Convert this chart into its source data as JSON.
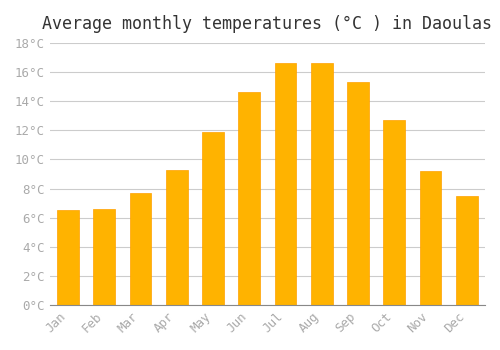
{
  "title": "Average monthly temperatures (°C ) in Daoulas",
  "months": [
    "Jan",
    "Feb",
    "Mar",
    "Apr",
    "May",
    "Jun",
    "Jul",
    "Aug",
    "Sep",
    "Oct",
    "Nov",
    "Dec"
  ],
  "values": [
    6.5,
    6.6,
    7.7,
    9.3,
    11.9,
    14.6,
    16.6,
    16.6,
    15.3,
    12.7,
    9.2,
    7.5
  ],
  "bar_color_face": "#FFB300",
  "bar_color_edge": "#FFA000",
  "ylim": [
    0,
    18
  ],
  "ytick_step": 2,
  "background_color": "#FFFFFF",
  "plot_bg_color": "#FFFFFF",
  "grid_color": "#CCCCCC",
  "title_fontsize": 12,
  "tick_label_color": "#AAAAAA",
  "tick_fontsize": 9
}
